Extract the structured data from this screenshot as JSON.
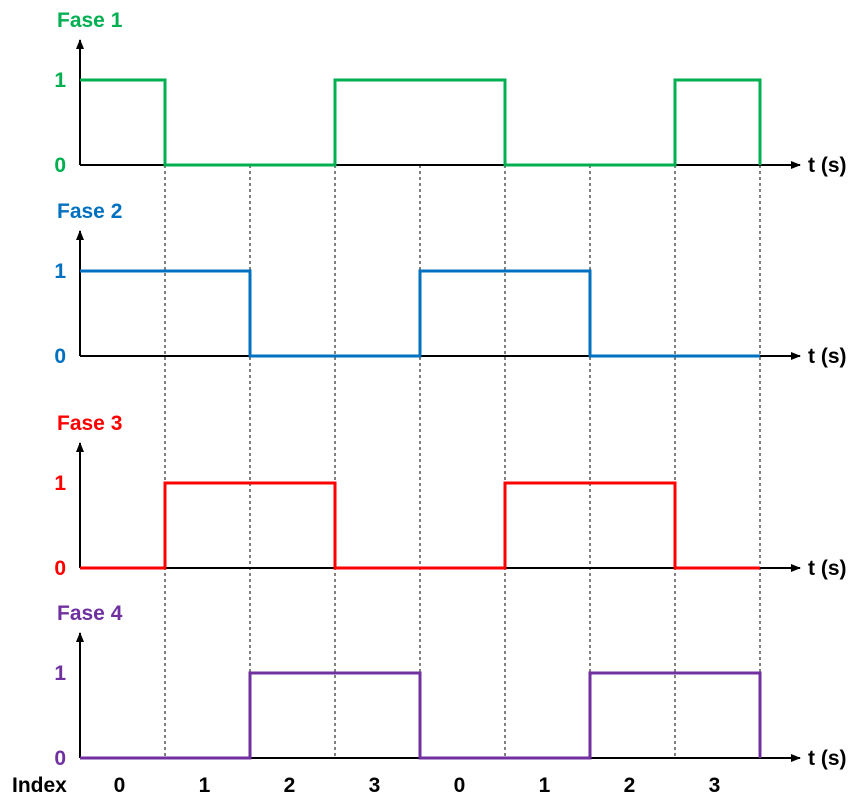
{
  "colors": {
    "axis": "#000000",
    "grid": "#000000",
    "fase1": "#00b050",
    "fase2": "#0070c0",
    "fase3": "#ff0000",
    "fase4": "#7030a0"
  },
  "chart_data": {
    "type": "line",
    "step": true,
    "x_label": "t (s)",
    "index_label": "Index",
    "index_values": [
      "0",
      "1",
      "2",
      "3",
      "0",
      "1",
      "2",
      "3"
    ],
    "y_ticks": [
      "0",
      "1"
    ],
    "x_range": [
      0,
      8
    ],
    "y_range": [
      0,
      1
    ],
    "series": [
      {
        "name": "Fase 1",
        "color": "#00b050",
        "values": [
          1,
          0,
          0,
          1,
          1,
          0,
          0,
          1
        ]
      },
      {
        "name": "Fase 2",
        "color": "#0070c0",
        "values": [
          1,
          1,
          0,
          0,
          1,
          1,
          0,
          0
        ]
      },
      {
        "name": "Fase 3",
        "color": "#ff0000",
        "values": [
          0,
          1,
          1,
          0,
          0,
          1,
          1,
          0
        ]
      },
      {
        "name": "Fase 4",
        "color": "#7030a0",
        "values": [
          0,
          0,
          1,
          1,
          0,
          0,
          1,
          1
        ]
      }
    ]
  }
}
